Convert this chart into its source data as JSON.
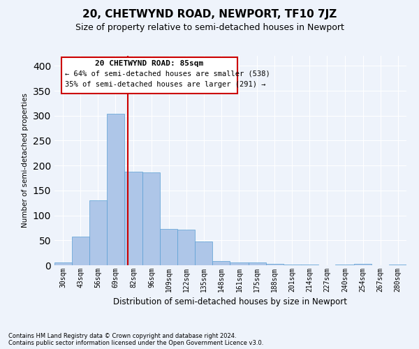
{
  "title": "20, CHETWYND ROAD, NEWPORT, TF10 7JZ",
  "subtitle": "Size of property relative to semi-detached houses in Newport",
  "xlabel": "Distribution of semi-detached houses by size in Newport",
  "ylabel": "Number of semi-detached properties",
  "footer_line1": "Contains HM Land Registry data © Crown copyright and database right 2024.",
  "footer_line2": "Contains public sector information licensed under the Open Government Licence v3.0.",
  "annotation_title": "20 CHETWYND ROAD: 85sqm",
  "annotation_smaller": "← 64% of semi-detached houses are smaller (538)",
  "annotation_larger": "35% of semi-detached houses are larger (291) →",
  "property_size": 85,
  "bar_edges": [
    30,
    43,
    56,
    69,
    82,
    96,
    109,
    122,
    135,
    148,
    161,
    175,
    188,
    201,
    214,
    227,
    240,
    254,
    267,
    280,
    293
  ],
  "bar_heights": [
    5,
    58,
    130,
    304,
    188,
    186,
    73,
    72,
    48,
    8,
    6,
    5,
    3,
    2,
    1,
    0,
    2,
    3,
    0,
    1
  ],
  "bar_color": "#aec6e8",
  "bar_edge_color": "#5a9fd4",
  "vertical_line_x": 85,
  "vertical_line_color": "#cc0000",
  "background_color": "#eef3fb",
  "grid_color": "#ffffff",
  "ylim": [
    0,
    420
  ],
  "yticks": [
    0,
    50,
    100,
    150,
    200,
    250,
    300,
    350,
    400
  ],
  "annotation_box_color": "#cc0000",
  "title_fontsize": 11,
  "subtitle_fontsize": 9,
  "tick_label_fontsize": 7,
  "ylabel_fontsize": 7.5,
  "xlabel_fontsize": 8.5
}
